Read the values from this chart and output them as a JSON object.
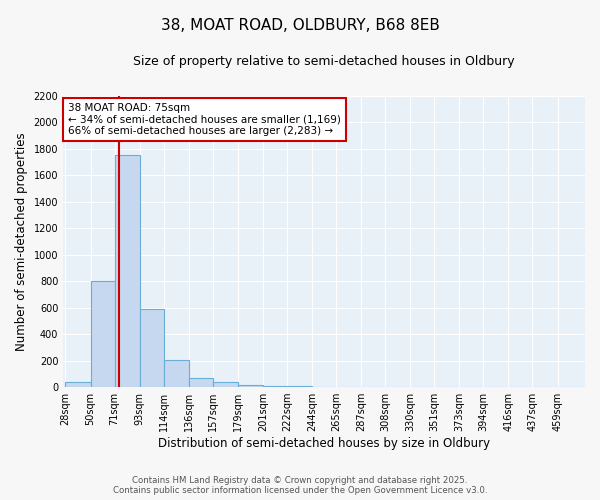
{
  "title_line1": "38, MOAT ROAD, OLDBURY, B68 8EB",
  "title_line2": "Size of property relative to semi-detached houses in Oldbury",
  "xlabel": "Distribution of semi-detached houses by size in Oldbury",
  "ylabel": "Number of semi-detached properties",
  "footer_line1": "Contains HM Land Registry data © Crown copyright and database right 2025.",
  "footer_line2": "Contains public sector information licensed under the Open Government Licence v3.0.",
  "bar_edges": [
    28,
    50,
    71,
    93,
    114,
    136,
    157,
    179,
    201,
    222,
    244,
    265,
    287,
    308,
    330,
    351,
    373,
    394,
    416,
    437,
    459
  ],
  "bar_heights": [
    40,
    800,
    1750,
    590,
    205,
    65,
    40,
    15,
    10,
    5,
    3,
    1,
    0,
    0,
    0,
    0,
    0,
    0,
    0,
    0,
    0
  ],
  "bar_color": "#c5d8f0",
  "bar_edge_color": "#6aaed6",
  "property_size": 75,
  "vline_color": "#cc0000",
  "annotation_text_line1": "38 MOAT ROAD: 75sqm",
  "annotation_text_line2": "← 34% of semi-detached houses are smaller (1,169)",
  "annotation_text_line3": "66% of semi-detached houses are larger (2,283) →",
  "annotation_box_color": "#cc0000",
  "annotation_bg": "#ffffff",
  "ylim": [
    0,
    2200
  ],
  "yticks": [
    0,
    200,
    400,
    600,
    800,
    1000,
    1200,
    1400,
    1600,
    1800,
    2000,
    2200
  ],
  "fig_bg_color": "#f7f7f7",
  "plot_bg_color": "#e8f0f8",
  "grid_color": "#ffffff",
  "title_fontsize": 11,
  "subtitle_fontsize": 9,
  "tick_label_fontsize": 7,
  "axis_label_fontsize": 8.5
}
